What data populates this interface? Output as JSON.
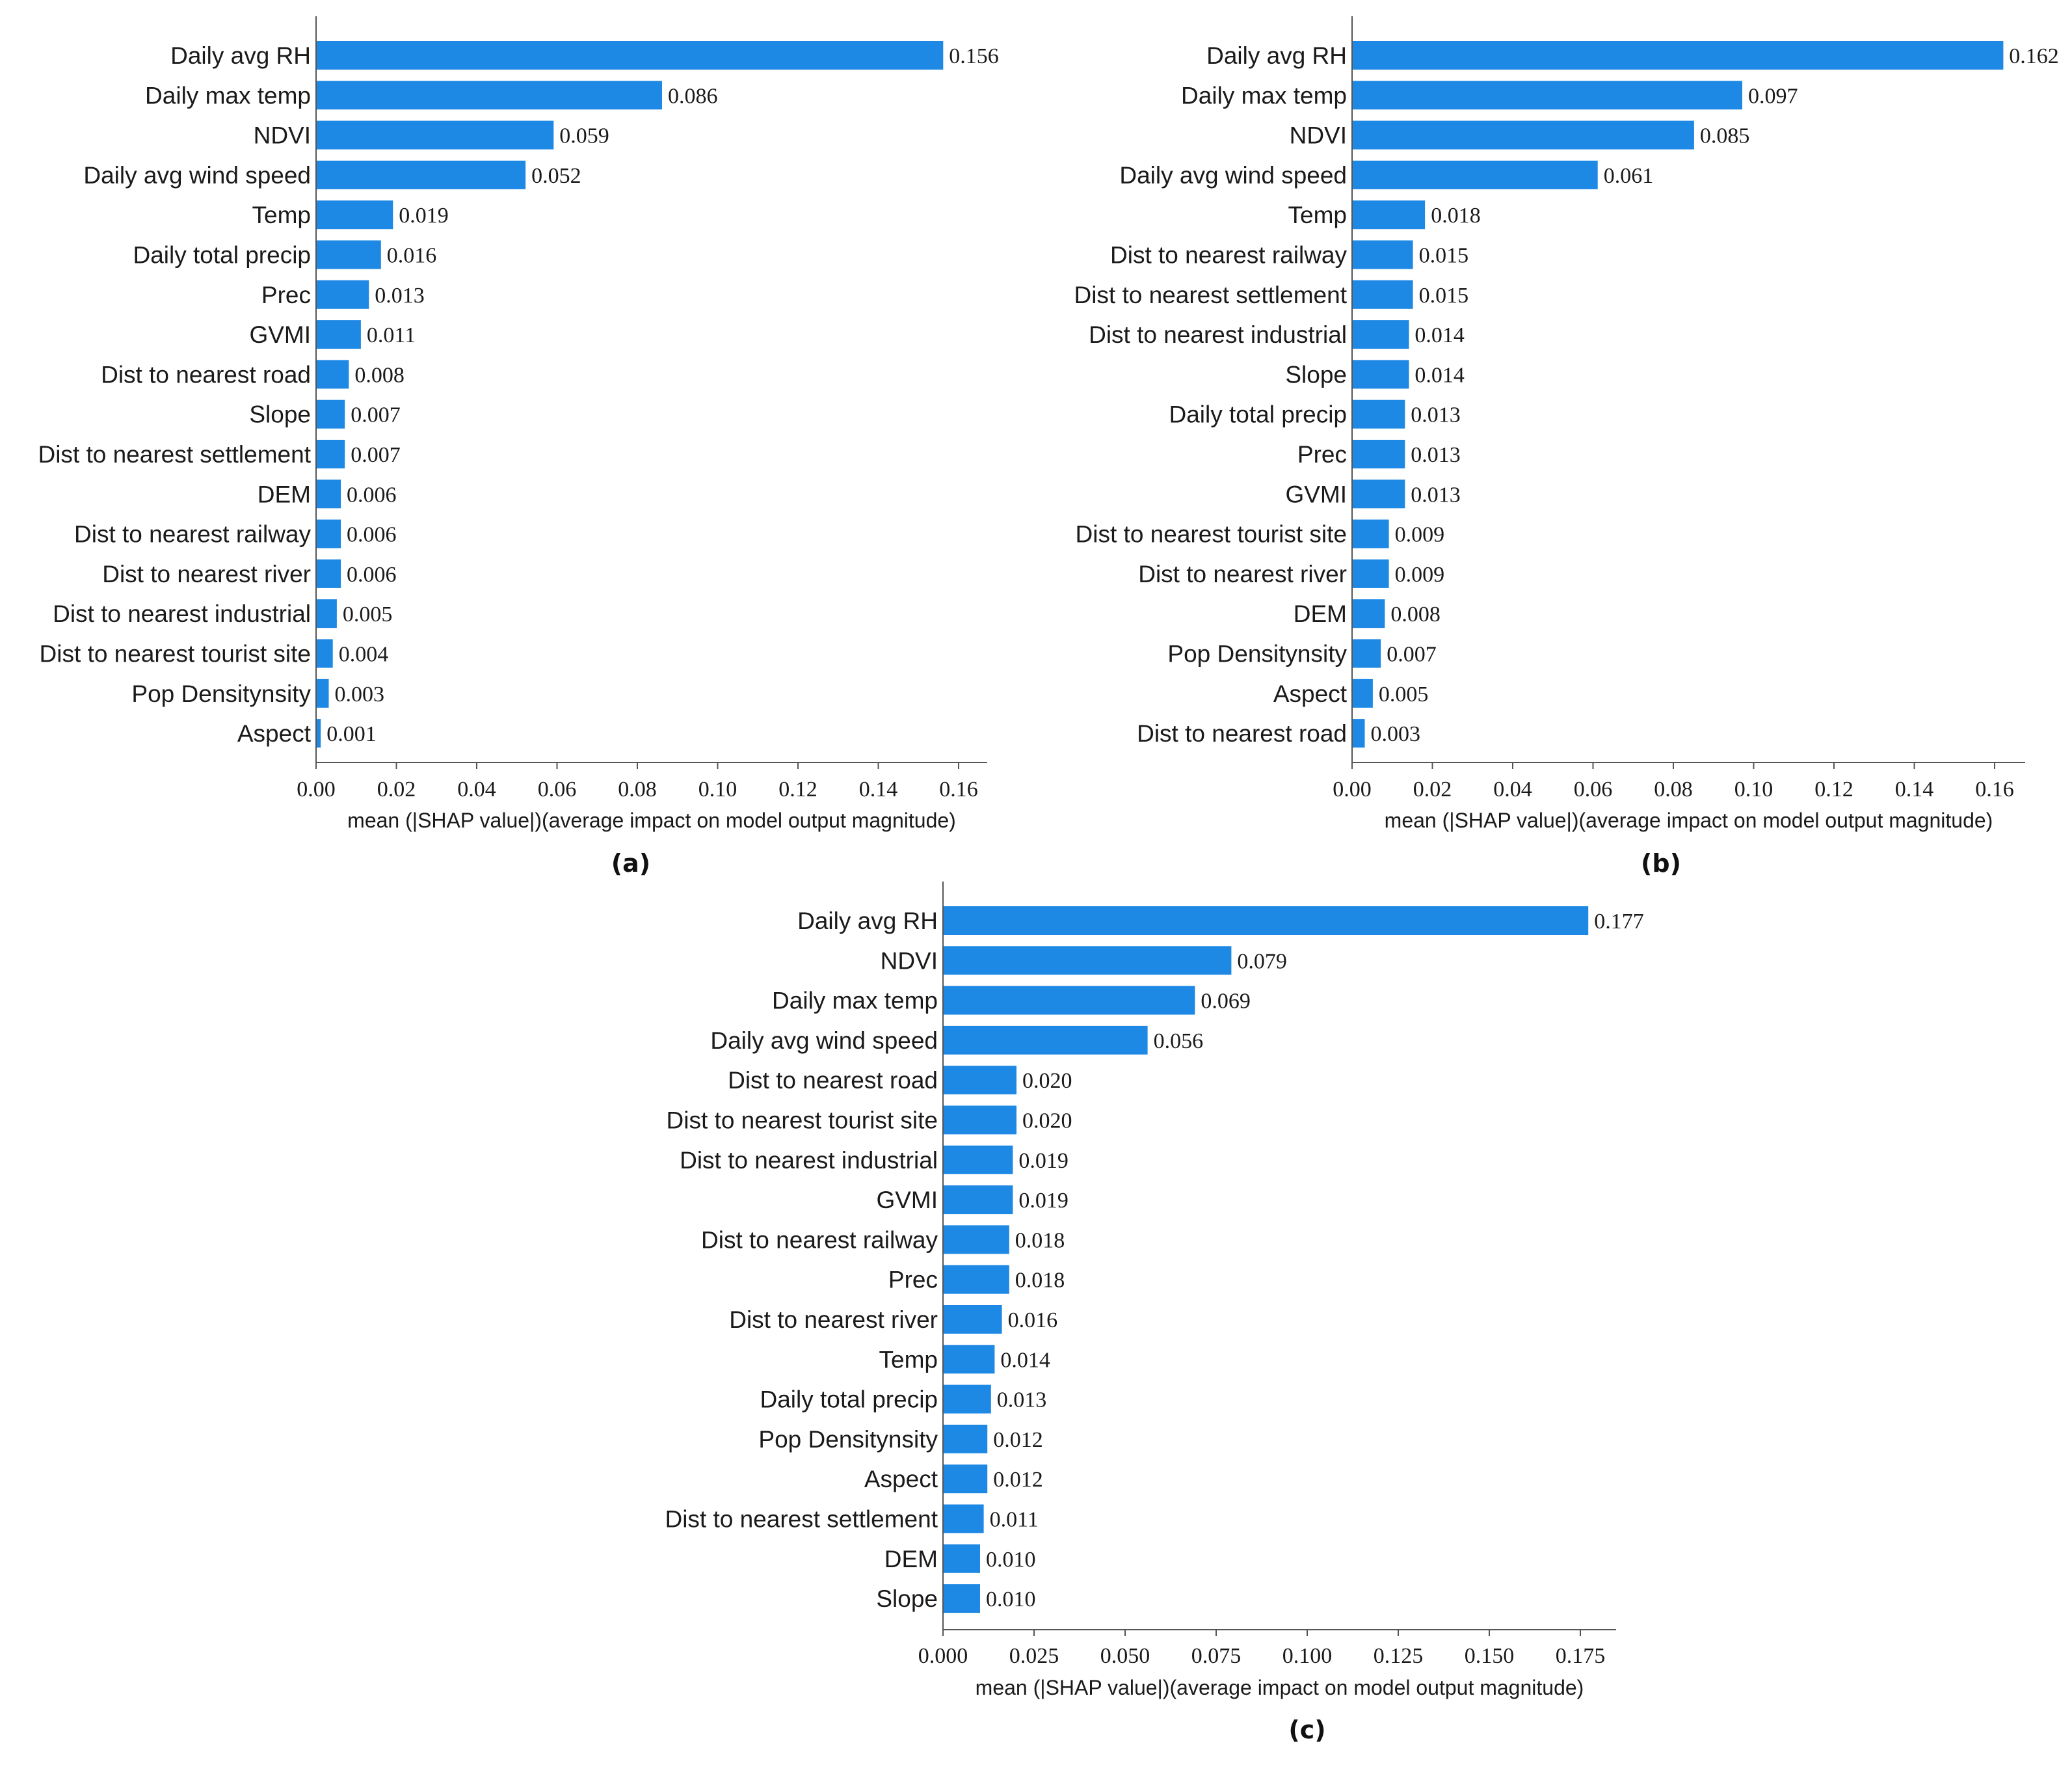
{
  "figure": {
    "bar_color": "#1e88e5",
    "axis_color": "#555555"
  },
  "chart_data": [
    {
      "type": "bar",
      "orientation": "horizontal",
      "panel_label": "(a)",
      "xlabel": "mean (|SHAP value|)(average impact on model output magnitude)",
      "xlim": [
        0,
        0.168
      ],
      "xticks": [
        0,
        0.02,
        0.04,
        0.06,
        0.08,
        0.1,
        0.12,
        0.14,
        0.16
      ],
      "xtick_labels": [
        "0.00",
        "0.02",
        "0.04",
        "0.06",
        "0.08",
        "0.10",
        "0.12",
        "0.14",
        "0.16"
      ],
      "categories": [
        "Daily avg RH",
        "Daily max temp",
        "NDVI",
        "Daily avg wind speed",
        "Temp",
        "Daily total precip",
        "Prec",
        "GVMI",
        "Dist to nearest road",
        "Slope",
        "Dist to nearest settlement",
        "DEM",
        "Dist to nearest railway",
        "Dist to nearest river",
        "Dist to nearest industrial",
        "Dist to nearest tourist site",
        "Pop  Densitynsity",
        "Aspect"
      ],
      "values": [
        0.156,
        0.086,
        0.059,
        0.052,
        0.019,
        0.016,
        0.013,
        0.011,
        0.008,
        0.007,
        0.007,
        0.006,
        0.006,
        0.006,
        0.005,
        0.004,
        0.003,
        0.001
      ],
      "value_labels": [
        "0.156",
        "0.086",
        "0.059",
        "0.052",
        "0.019",
        "0.016",
        "0.013",
        "0.011",
        "0.008",
        "0.007",
        "0.007",
        "0.006",
        "0.006",
        "0.006",
        "0.005",
        "0.004",
        "0.003",
        "0.001"
      ]
    },
    {
      "type": "bar",
      "orientation": "horizontal",
      "panel_label": "(b)",
      "xlabel": "mean (|SHAP value|)(average impact on model output magnitude)",
      "xlim": [
        0,
        0.168
      ],
      "xticks": [
        0,
        0.02,
        0.04,
        0.06,
        0.08,
        0.1,
        0.12,
        0.14,
        0.16
      ],
      "xtick_labels": [
        "0.00",
        "0.02",
        "0.04",
        "0.06",
        "0.08",
        "0.10",
        "0.12",
        "0.14",
        "0.16"
      ],
      "categories": [
        "Daily avg RH",
        "Daily max temp",
        "NDVI",
        "Daily avg wind speed",
        "Temp",
        "Dist to nearest railway",
        "Dist to nearest settlement",
        "Dist to nearest industrial",
        "Slope",
        "Daily total precip",
        "Prec",
        "GVMI",
        "Dist to nearest tourist site",
        "Dist to nearest river",
        "DEM",
        "Pop  Densitynsity",
        "Aspect",
        "Dist to nearest road"
      ],
      "values": [
        0.162,
        0.097,
        0.085,
        0.061,
        0.018,
        0.015,
        0.015,
        0.014,
        0.014,
        0.013,
        0.013,
        0.013,
        0.009,
        0.009,
        0.008,
        0.007,
        0.005,
        0.003
      ],
      "value_labels": [
        "0.162",
        "0.097",
        "0.085",
        "0.061",
        "0.018",
        "0.015",
        "0.015",
        "0.014",
        "0.014",
        "0.013",
        "0.013",
        "0.013",
        "0.009",
        "0.009",
        "0.008",
        "0.007",
        "0.005",
        "0.003"
      ]
    },
    {
      "type": "bar",
      "orientation": "horizontal",
      "panel_label": "(c)",
      "xlabel": "mean (|SHAP value|)(average impact on model output magnitude)",
      "xlim": [
        0,
        0.184
      ],
      "xticks": [
        0,
        0.025,
        0.05,
        0.075,
        0.1,
        0.125,
        0.15,
        0.175
      ],
      "xtick_labels": [
        "0.000",
        "0.025",
        "0.050",
        "0.075",
        "0.100",
        "0.125",
        "0.150",
        "0.175"
      ],
      "categories": [
        "Daily avg RH",
        "NDVI",
        "Daily max temp",
        "Daily avg wind speed",
        "Dist to nearest road",
        "Dist to nearest tourist site",
        "Dist to nearest industrial",
        "GVMI",
        "Dist to nearest railway",
        "Prec",
        "Dist to nearest river",
        "Temp",
        "Daily total precip",
        "Pop  Densitynsity",
        "Aspect",
        "Dist to nearest settlement",
        "DEM",
        "Slope"
      ],
      "values": [
        0.177,
        0.079,
        0.069,
        0.056,
        0.02,
        0.02,
        0.019,
        0.019,
        0.018,
        0.018,
        0.016,
        0.014,
        0.013,
        0.012,
        0.012,
        0.011,
        0.01,
        0.01
      ],
      "value_labels": [
        "0.177",
        "0.079",
        "0.069",
        "0.056",
        "0.020",
        "0.020",
        "0.019",
        "0.019",
        "0.018",
        "0.018",
        "0.016",
        "0.014",
        "0.013",
        "0.012",
        "0.012",
        "0.011",
        "0.010",
        "0.010"
      ]
    }
  ]
}
